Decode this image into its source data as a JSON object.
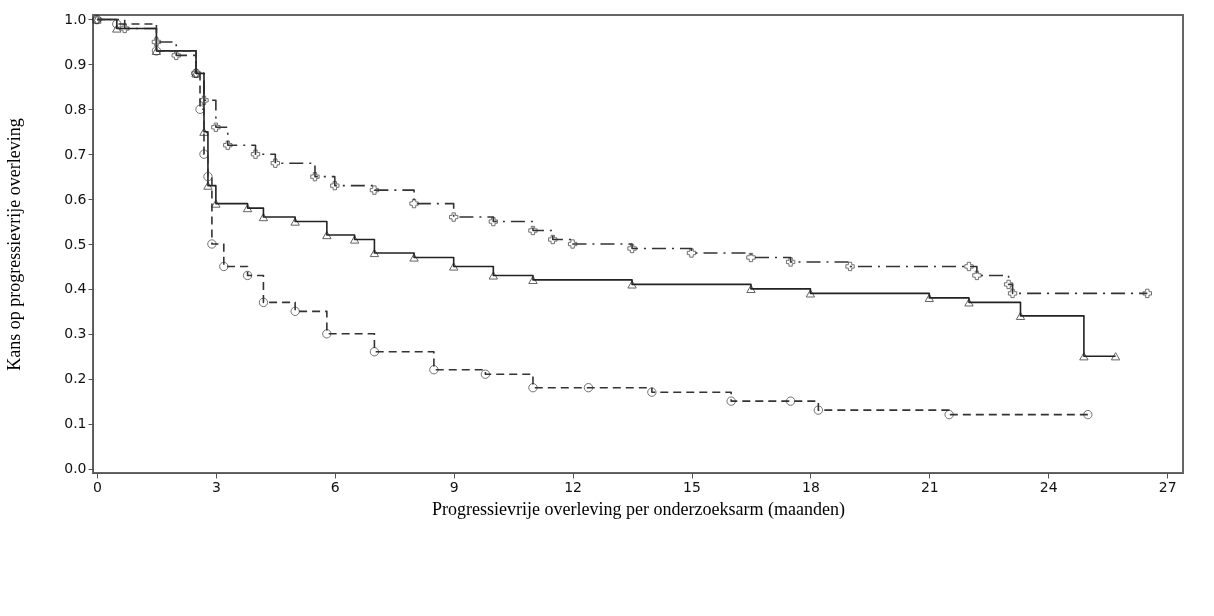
{
  "chart_data": {
    "type": "step",
    "xlabel": "Progressievrije overleving per onderzoeksarm (maanden)",
    "ylabel": "Kans op progressievrije overleving",
    "xlim": [
      -0.1,
      27.4
    ],
    "ylim": [
      -0.01,
      1.01
    ],
    "xticks": [
      0,
      3,
      6,
      9,
      12,
      15,
      18,
      21,
      24,
      27
    ],
    "yticks": [
      {
        "value": 0,
        "label": "0.0"
      },
      {
        "value": 0.1,
        "label": "0.1"
      },
      {
        "value": 0.2,
        "label": "0.2"
      },
      {
        "value": 0.3,
        "label": "0.3"
      },
      {
        "value": 0.4,
        "label": "0.4"
      },
      {
        "value": 0.5,
        "label": "0.5"
      },
      {
        "value": 0.6,
        "label": "0.6"
      },
      {
        "value": 0.7,
        "label": "0.7"
      },
      {
        "value": 0.8,
        "label": "0.8"
      },
      {
        "value": 0.9,
        "label": "0.9"
      },
      {
        "value": 1,
        "label": "1.0"
      }
    ],
    "grid": false,
    "series": [
      {
        "color": "#333333",
        "marker": "cross",
        "line_style": "dashdot",
        "x": [
          0,
          0.7,
          1.5,
          2.0,
          2.5,
          2.7,
          3.0,
          3.3,
          4.0,
          4.5,
          5.5,
          6.0,
          7.0,
          8.0,
          9.0,
          10.0,
          11.0,
          11.5,
          12.0,
          13.5,
          15.0,
          16.5,
          17.5,
          19.0,
          22.0,
          22.2,
          23.0,
          23.1,
          26.5
        ],
        "values": [
          1.0,
          0.98,
          0.95,
          0.92,
          0.88,
          0.82,
          0.76,
          0.72,
          0.7,
          0.68,
          0.65,
          0.63,
          0.62,
          0.59,
          0.56,
          0.55,
          0.53,
          0.51,
          0.5,
          0.49,
          0.48,
          0.47,
          0.46,
          0.45,
          0.45,
          0.43,
          0.41,
          0.39,
          0.39
        ]
      },
      {
        "color": "#222222",
        "marker": "triangle",
        "line_style": "solid",
        "x": [
          0,
          0.5,
          1.5,
          2.5,
          2.7,
          2.8,
          3.0,
          3.8,
          4.2,
          5.0,
          5.8,
          6.5,
          7.0,
          8.0,
          9.0,
          10.0,
          11.0,
          13.5,
          16.5,
          18.0,
          21.0,
          22.0,
          23.3,
          24.9,
          25.7
        ],
        "values": [
          1.0,
          0.98,
          0.93,
          0.88,
          0.75,
          0.63,
          0.59,
          0.58,
          0.56,
          0.55,
          0.52,
          0.51,
          0.48,
          0.47,
          0.45,
          0.43,
          0.42,
          0.41,
          0.4,
          0.39,
          0.38,
          0.37,
          0.34,
          0.25,
          0.25
        ]
      },
      {
        "color": "#333333",
        "marker": "circle",
        "line_style": "dashed",
        "x": [
          0,
          0.5,
          1.5,
          2.5,
          2.6,
          2.7,
          2.8,
          2.9,
          3.2,
          3.8,
          4.2,
          5.0,
          5.8,
          7.0,
          8.5,
          9.8,
          11.0,
          12.4,
          14.0,
          16.0,
          17.5,
          18.2,
          21.5,
          25.0
        ],
        "values": [
          1.0,
          0.99,
          0.93,
          0.88,
          0.8,
          0.7,
          0.65,
          0.5,
          0.45,
          0.43,
          0.37,
          0.35,
          0.3,
          0.26,
          0.22,
          0.21,
          0.18,
          0.18,
          0.17,
          0.15,
          0.15,
          0.13,
          0.12,
          0.12
        ]
      }
    ]
  }
}
